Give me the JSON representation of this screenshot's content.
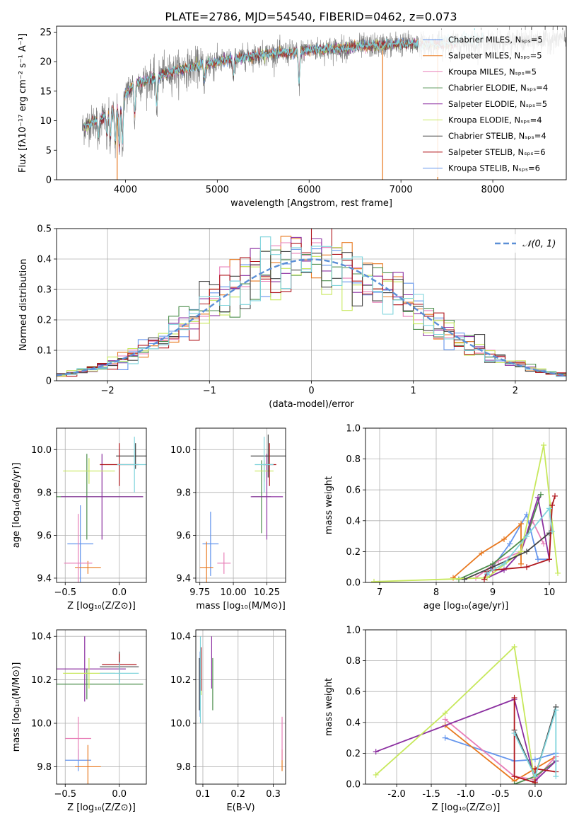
{
  "title": "PLATE=2786, MJD=54540, FIBERID=0462, z=0.073",
  "colors": [
    "#6495ED",
    "#E8781E",
    "#E87FB8",
    "#4E8F4E",
    "#8B2FA0",
    "#C7E85C",
    "#444444",
    "#B0161C",
    "#7FD4DC"
  ],
  "legend": [
    "Chabrier MILES, Nₛₚₛ=5",
    "Salpeter MILES, Nₛₚₛ=5",
    "Kroupa MILES, Nₛₚₛ=5",
    "Chabrier ELODIE, Nₛₚₛ=4",
    "Salpeter ELODIE, Nₛₚₛ=5",
    "Kroupa ELODIE, Nₛₚₛ=4",
    "Chabrier STELIB, Nₛₚₛ=4",
    "Salpeter STELIB, Nₛₚₛ=6",
    "Kroupa STELIB, Nₛₚₛ=6"
  ],
  "chart_data": [
    {
      "id": "spectrum",
      "type": "line",
      "xlabel": "wavelength [Angstrom, rest frame]",
      "ylabel": "Flux [fλ10⁻¹⁷ erg cm⁻² s⁻¹ A⁻¹]",
      "xlim": [
        3250,
        8800
      ],
      "ylim": [
        0,
        26
      ],
      "xticks": [
        4000,
        5000,
        6000,
        7000,
        8000
      ],
      "yticks": [
        0,
        5,
        10,
        15,
        20,
        25
      ],
      "wavelength_range": [
        3530,
        8800
      ],
      "continuum": {
        "x": [
          3530,
          3700,
          3900,
          4000,
          4100,
          4300,
          4500,
          4800,
          5000,
          5200,
          5500,
          5800,
          6000,
          6300,
          6600,
          7000,
          7500,
          8000,
          8500,
          8800
        ],
        "y": [
          8.8,
          10.2,
          12.0,
          14.5,
          16.2,
          17.2,
          18.3,
          19.3,
          19.9,
          20.5,
          21.3,
          21.5,
          22.0,
          22.2,
          22.6,
          23.0,
          23.0,
          23.2,
          23.6,
          24.0
        ]
      },
      "dips": [
        {
          "x": 3705,
          "y": 6.5
        },
        {
          "x": 3798,
          "y": 6.8
        },
        {
          "x": 3835,
          "y": 6.0
        },
        {
          "x": 3889,
          "y": 5.0
        },
        {
          "x": 3933,
          "y": 4.0
        },
        {
          "x": 3968,
          "y": 4.8
        },
        {
          "x": 4102,
          "y": 10.0
        },
        {
          "x": 4340,
          "y": 12.0
        },
        {
          "x": 4861,
          "y": 16.5
        },
        {
          "x": 5175,
          "y": 17.2
        },
        {
          "x": 5890,
          "y": 15.5
        }
      ],
      "spikes": [
        {
          "x": 3910,
          "y": 0.0
        },
        {
          "x": 6800,
          "y": 0.0
        },
        {
          "x": 7400,
          "y": 0.0
        }
      ]
    },
    {
      "id": "residuals",
      "type": "histogram",
      "xlabel": "(data-model)/error",
      "ylabel": "Normed distribution",
      "xlim": [
        -2.5,
        2.5
      ],
      "ylim": [
        0,
        0.5
      ],
      "xticks": [
        -2,
        -1,
        0,
        1,
        2
      ],
      "yticks": [
        0.0,
        0.1,
        0.2,
        0.3,
        0.4,
        0.5
      ],
      "bin_width": 0.1,
      "reference": {
        "label": "𝒩(0, 1)",
        "mean": 0,
        "sigma": 1
      }
    },
    {
      "id": "age-vs-Z",
      "type": "scatter",
      "xlabel": "Z [log₁₀(Z/Z⊙)]",
      "ylabel": "age  [log₁₀(age/yr)]",
      "xlim": [
        -0.58,
        0.25
      ],
      "ylim": [
        9.38,
        10.1
      ],
      "xticks": [
        -0.5,
        0.0
      ],
      "yticks": [
        9.4,
        9.6,
        9.8,
        10.0
      ],
      "points": [
        {
          "x": -0.36,
          "y": 9.56,
          "xerr": 0.12,
          "yerr": 0.18
        },
        {
          "x": -0.29,
          "y": 9.45,
          "xerr": 0.12,
          "yerr": 0.03
        },
        {
          "x": -0.38,
          "y": 9.47,
          "xerr": 0.13,
          "yerr": 0.23
        },
        {
          "x": -0.3,
          "y": 9.78,
          "xerr": 0.52,
          "yerr": 0.2
        },
        {
          "x": -0.16,
          "y": 9.78,
          "xerr": 0.38,
          "yerr": 0.2
        },
        {
          "x": -0.28,
          "y": 9.9,
          "xerr": 0.24,
          "yerr": 0.06
        },
        {
          "x": 0.15,
          "y": 9.97,
          "xerr": 0.18,
          "yerr": 0.06
        },
        {
          "x": 0.0,
          "y": 9.93,
          "xerr": 0.18,
          "yerr": 0.1
        },
        {
          "x": 0.14,
          "y": 9.93,
          "xerr": 0.16,
          "yerr": 0.13
        }
      ]
    },
    {
      "id": "age-vs-mass",
      "type": "scatter",
      "xlabel": "mass [log₁₀(M/M⊙)]",
      "ylabel": "",
      "xlim": [
        9.72,
        10.39
      ],
      "ylim": [
        9.38,
        10.1
      ],
      "xticks": [
        9.75,
        10.0,
        10.25
      ],
      "yticks": [
        9.4,
        9.6,
        9.8,
        10.0
      ],
      "points": [
        {
          "x": 9.83,
          "y": 9.56,
          "xerr": 0.06,
          "yerr": 0.15
        },
        {
          "x": 9.8,
          "y": 9.45,
          "xerr": 0.05,
          "yerr": 0.12
        },
        {
          "x": 9.93,
          "y": 9.47,
          "xerr": 0.05,
          "yerr": 0.05
        },
        {
          "x": 10.21,
          "y": 9.78,
          "xerr": 0.07,
          "yerr": 0.17
        },
        {
          "x": 10.25,
          "y": 9.78,
          "xerr": 0.12,
          "yerr": 0.2
        },
        {
          "x": 10.23,
          "y": 9.9,
          "xerr": 0.07,
          "yerr": 0.05
        },
        {
          "x": 10.26,
          "y": 9.97,
          "xerr": 0.13,
          "yerr": 0.1
        },
        {
          "x": 10.27,
          "y": 9.93,
          "xerr": 0.05,
          "yerr": 0.1
        },
        {
          "x": 10.23,
          "y": 9.93,
          "xerr": 0.07,
          "yerr": 0.13
        }
      ]
    },
    {
      "id": "weight-vs-age",
      "type": "line",
      "xlabel": "age  [log₁₀(age/yr)]",
      "ylabel": "mass weight",
      "xlim": [
        6.75,
        10.3
      ],
      "ylim": [
        0,
        1
      ],
      "xticks": [
        7,
        8,
        9,
        10
      ],
      "yticks": [
        0.0,
        0.2,
        0.4,
        0.6,
        0.8,
        1.0
      ],
      "series": [
        {
          "x": [
            8.9,
            9.3,
            9.6,
            9.8,
            10.0
          ],
          "y": [
            0.05,
            0.25,
            0.44,
            0.15,
            0.15
          ]
        },
        {
          "x": [
            8.3,
            8.8,
            9.2,
            9.5,
            9.5
          ],
          "y": [
            0.03,
            0.19,
            0.28,
            0.38,
            0.12
          ]
        },
        {
          "x": [
            8.7,
            9.1,
            9.5,
            9.7,
            9.9
          ],
          "y": [
            0.03,
            0.14,
            0.2,
            0.4,
            0.25
          ]
        },
        {
          "x": [
            8.4,
            9.0,
            9.6,
            9.85
          ],
          "y": [
            0.02,
            0.12,
            0.3,
            0.57
          ]
        },
        {
          "x": [
            8.9,
            9.2,
            9.5,
            9.8,
            10.0
          ],
          "y": [
            0.03,
            0.08,
            0.2,
            0.55,
            0.15
          ]
        },
        {
          "x": [
            6.9,
            8.9,
            9.5,
            9.9,
            10.15
          ],
          "y": [
            0.005,
            0.03,
            0.2,
            0.89,
            0.06
          ]
        },
        {
          "x": [
            8.5,
            9.0,
            9.6,
            10.0
          ],
          "y": [
            0.02,
            0.1,
            0.2,
            0.32
          ]
        },
        {
          "x": [
            8.85,
            8.9,
            9.0,
            9.6,
            10.0,
            10.05,
            10.1
          ],
          "y": [
            0.02,
            0.07,
            0.08,
            0.1,
            0.15,
            0.5,
            0.56
          ]
        },
        {
          "x": [
            8.9,
            9.2,
            9.6,
            10.0,
            10.05
          ],
          "y": [
            0.06,
            0.12,
            0.3,
            0.48,
            0.33
          ]
        }
      ]
    },
    {
      "id": "mass-vs-Z",
      "type": "scatter",
      "xlabel": "Z [log₁₀(Z/Z⊙)]",
      "ylabel": "mass [log₁₀(M/M⊙)]",
      "xlim": [
        -0.58,
        0.25
      ],
      "ylim": [
        9.72,
        10.43
      ],
      "xticks": [
        -0.5,
        0.0
      ],
      "yticks": [
        9.8,
        10.0,
        10.2,
        10.4
      ],
      "points": [
        {
          "x": -0.38,
          "y": 9.83,
          "xerr": 0.12,
          "yerr": 0.05
        },
        {
          "x": -0.29,
          "y": 9.8,
          "xerr": 0.12,
          "yerr": 0.1
        },
        {
          "x": -0.38,
          "y": 9.93,
          "xerr": 0.12,
          "yerr": 0.1
        },
        {
          "x": -0.3,
          "y": 10.18,
          "xerr": 0.52,
          "yerr": 0.07
        },
        {
          "x": -0.32,
          "y": 10.25,
          "xerr": 0.38,
          "yerr": 0.15
        },
        {
          "x": -0.28,
          "y": 10.23,
          "xerr": 0.24,
          "yerr": 0.07
        },
        {
          "x": 0.0,
          "y": 10.26,
          "xerr": 0.18,
          "yerr": 0.07
        },
        {
          "x": 0.0,
          "y": 10.27,
          "xerr": 0.16,
          "yerr": 0.05
        },
        {
          "x": 0.0,
          "y": 10.23,
          "xerr": 0.18,
          "yerr": 0.05
        }
      ]
    },
    {
      "id": "mass-vs-EBV",
      "type": "scatter",
      "xlabel": "E(B-V)",
      "ylabel": "",
      "xlim": [
        0.08,
        0.335
      ],
      "ylim": [
        9.72,
        10.43
      ],
      "xticks": [
        0.1,
        0.2,
        0.3
      ],
      "yticks": [
        9.8,
        10.0,
        10.2,
        10.4
      ],
      "points": [
        {
          "x": 0.092,
          "y": 10.18,
          "xerr": 0,
          "yerr": 0.15
        },
        {
          "x": 0.325,
          "y": 9.83,
          "xerr": 0,
          "yerr": 0.05
        },
        {
          "x": 0.325,
          "y": 9.93,
          "xerr": 0,
          "yerr": 0.1
        },
        {
          "x": 0.128,
          "y": 10.18,
          "xerr": 0,
          "yerr": 0.12
        },
        {
          "x": 0.125,
          "y": 10.28,
          "xerr": 0,
          "yerr": 0.12
        },
        {
          "x": 0.095,
          "y": 10.23,
          "xerr": 0,
          "yerr": 0.1
        },
        {
          "x": 0.09,
          "y": 10.18,
          "xerr": 0,
          "yerr": 0.12
        },
        {
          "x": 0.095,
          "y": 10.25,
          "xerr": 0,
          "yerr": 0.1
        },
        {
          "x": 0.093,
          "y": 10.2,
          "xerr": 0,
          "yerr": 0.2
        }
      ]
    },
    {
      "id": "weight-vs-Z",
      "type": "line",
      "xlabel": "Z [log₁₀(Z/Z⊙)]",
      "ylabel": "mass weight",
      "xlim": [
        -2.45,
        0.45
      ],
      "ylim": [
        0,
        1
      ],
      "xticks": [
        -2.0,
        -1.5,
        -1.0,
        -0.5,
        0.0
      ],
      "yticks": [
        0.0,
        0.2,
        0.4,
        0.6,
        0.8,
        1.0
      ],
      "series": [
        {
          "x": [
            -1.3,
            -0.3,
            0.0,
            0.3
          ],
          "y": [
            0.3,
            0.15,
            0.16,
            0.2
          ]
        },
        {
          "x": [
            -1.3,
            -0.3,
            0.0,
            0.3
          ],
          "y": [
            0.38,
            0.02,
            0.1,
            0.18
          ]
        },
        {
          "x": [
            -1.3,
            -0.3,
            0.0,
            0.3
          ],
          "y": [
            0.42,
            0.05,
            0.03,
            0.18
          ]
        },
        {
          "x": [
            -0.3,
            0.0,
            0.3
          ],
          "y": [
            0.0,
            0.05,
            0.15
          ]
        },
        {
          "x": [
            -2.3,
            -0.3,
            0.0,
            0.3
          ],
          "y": [
            0.21,
            0.55,
            0.02,
            0.15
          ]
        },
        {
          "x": [
            -2.3,
            -1.3,
            -0.3,
            0.0
          ],
          "y": [
            0.06,
            0.46,
            0.89,
            0.0
          ]
        },
        {
          "x": [
            -0.3,
            0.0,
            0.3
          ],
          "y": [
            0.35,
            0.05,
            0.5
          ]
        },
        {
          "x": [
            -0.3,
            -0.3,
            0.0,
            0.0,
            0.3
          ],
          "y": [
            0.56,
            0.05,
            0.01,
            0.1,
            0.08
          ]
        },
        {
          "x": [
            -0.3,
            0.0,
            0.3,
            0.3
          ],
          "y": [
            0.33,
            0.05,
            0.48,
            0.05
          ]
        }
      ]
    }
  ]
}
